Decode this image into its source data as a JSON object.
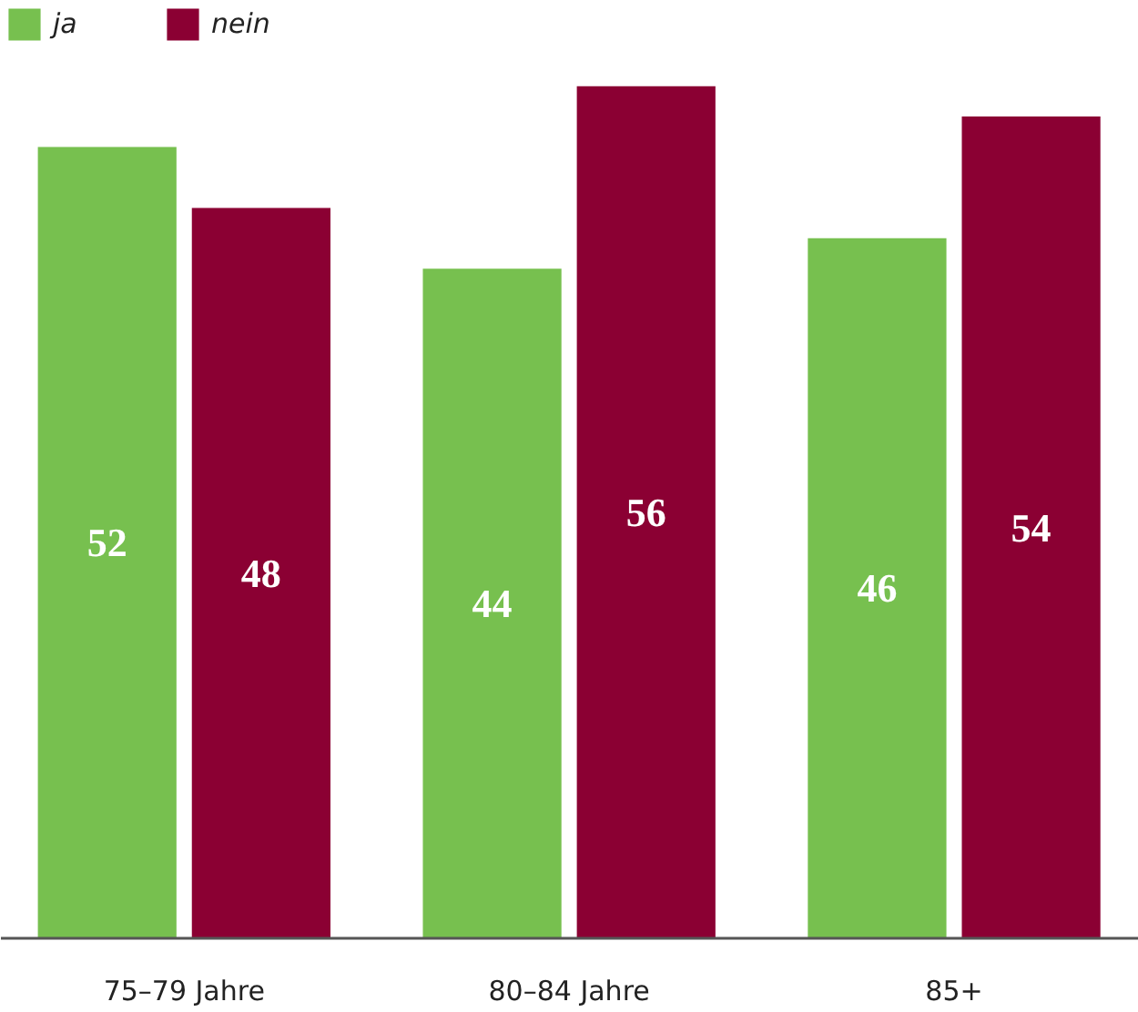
{
  "chart_data": {
    "type": "bar",
    "categories": [
      "75–79 Jahre",
      "80–84 Jahre",
      "85+"
    ],
    "series": [
      {
        "name": "ja",
        "color": "#77c04f",
        "values": [
          52,
          44,
          46
        ]
      },
      {
        "name": "nein",
        "color": "#8b0033",
        "values": [
          48,
          56,
          54
        ]
      }
    ],
    "data_labels": true,
    "legend": "top left",
    "grid": false
  }
}
